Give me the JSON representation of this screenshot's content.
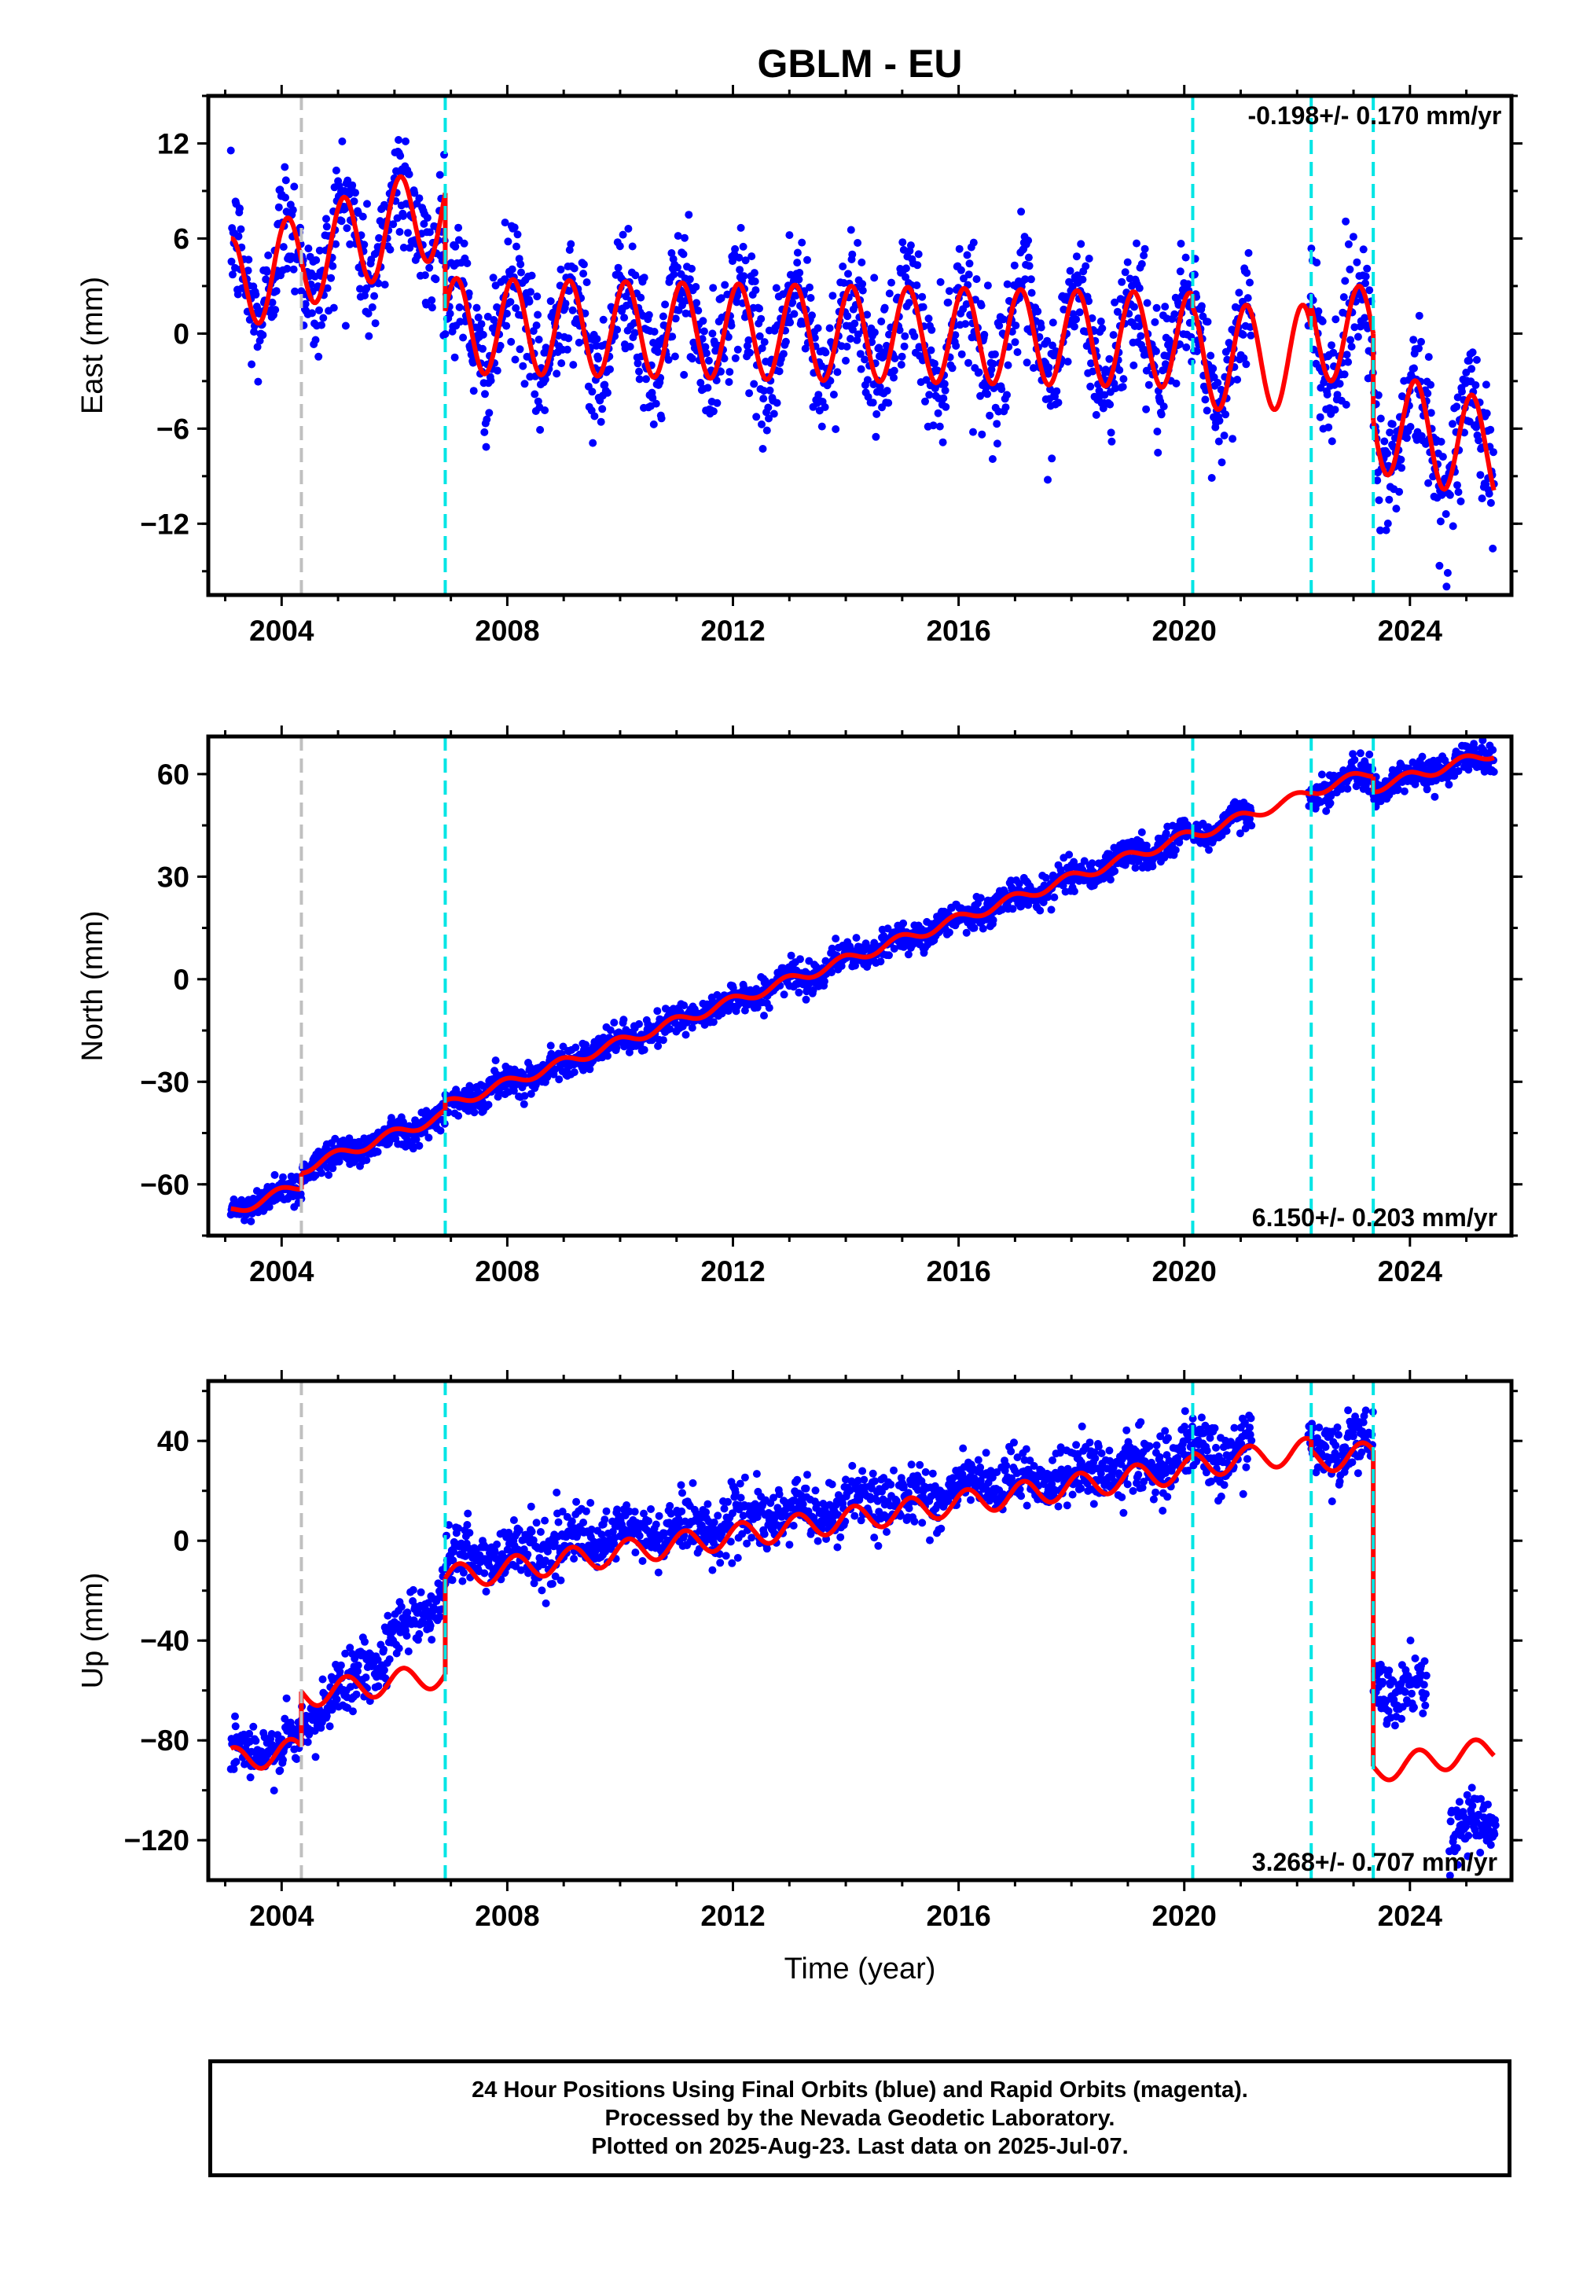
{
  "figure": {
    "title": "GBLM - EU"
  },
  "colors": {
    "data": "#0000ff",
    "model": "#ff0000",
    "offset_cyan": "#00e5e5",
    "offset_gray": "#c0c0c0"
  },
  "chart_data": [
    {
      "type": "scatter",
      "panel": "east",
      "title": "GBLM - EU",
      "ylabel": "East (mm)",
      "xlabel": "",
      "xlim": [
        2002.7,
        2025.8
      ],
      "ylim": [
        -16.5,
        15
      ],
      "xticks": [
        2004,
        2008,
        2012,
        2016,
        2020,
        2024
      ],
      "yticks": [
        -12,
        -6,
        0,
        6,
        12
      ],
      "rate": "-0.198+/- 0.170 mm/yr",
      "rate_position": "top-right",
      "offset_lines": [
        {
          "x": 2004.35,
          "color": "gray"
        },
        {
          "x": 2006.9,
          "color": "cyan"
        },
        {
          "x": 2020.15,
          "color": "cyan"
        },
        {
          "x": 2022.25,
          "color": "cyan"
        },
        {
          "x": 2023.35,
          "color": "cyan"
        }
      ],
      "model": {
        "segments": [
          {
            "start": 2003.1,
            "end": 2006.9,
            "v0": 3,
            "rate": 1.3,
            "amp": 3.0,
            "phase": 0.15
          },
          {
            "start": 2006.9,
            "end": 2020.15,
            "v0": 0.5,
            "rate": -0.07,
            "amp": 3.0,
            "phase": 0.15
          },
          {
            "start": 2020.15,
            "end": 2022.25,
            "v0": -1.5,
            "rate": 0.0,
            "amp": 3.3,
            "phase": 0.15
          },
          {
            "start": 2022.25,
            "end": 2023.35,
            "v0": 0.0,
            "rate": 0.0,
            "amp": 3.0,
            "phase": 0.15
          },
          {
            "start": 2023.35,
            "end": 2025.5,
            "v0": -5.5,
            "rate": -0.9,
            "amp": 3.2,
            "phase": 0.15
          }
        ]
      },
      "data_series": {
        "coverage": [
          [
            2003.1,
            2021.2
          ],
          [
            2022.2,
            2023.4
          ],
          [
            2023.4,
            2025.52
          ]
        ],
        "noise": 2.0
      }
    },
    {
      "type": "scatter",
      "panel": "north",
      "ylabel": "North (mm)",
      "xlabel": "",
      "xlim": [
        2002.7,
        2025.8
      ],
      "ylim": [
        -75,
        71
      ],
      "xticks": [
        2004,
        2008,
        2012,
        2016,
        2020,
        2024
      ],
      "yticks": [
        -60,
        -30,
        0,
        30,
        60
      ],
      "rate": "6.150+/- 0.203 mm/yr",
      "rate_position": "bottom-right",
      "offset_lines": [
        {
          "x": 2004.35,
          "color": "gray"
        },
        {
          "x": 2006.9,
          "color": "cyan"
        },
        {
          "x": 2020.15,
          "color": "cyan"
        },
        {
          "x": 2022.25,
          "color": "cyan"
        },
        {
          "x": 2023.35,
          "color": "cyan"
        }
      ],
      "model": {
        "segments": [
          {
            "start": 2003.1,
            "end": 2004.35,
            "v0": -68,
            "rate": 6.2,
            "amp": 1.5,
            "phase": 0.3
          },
          {
            "start": 2004.35,
            "end": 2006.9,
            "v0": -55.5,
            "rate": 6.2,
            "amp": 1.5,
            "phase": 0.3
          },
          {
            "start": 2006.9,
            "end": 2020.15,
            "v0": -37,
            "rate": 6.0,
            "amp": 1.5,
            "phase": 0.3
          },
          {
            "start": 2020.15,
            "end": 2022.25,
            "v0": 42,
            "rate": 6.0,
            "amp": 1.5,
            "phase": 0.3
          },
          {
            "start": 2022.25,
            "end": 2023.35,
            "v0": 55,
            "rate": 5.0,
            "amp": 1.5,
            "phase": 0.3
          },
          {
            "start": 2023.35,
            "end": 2025.5,
            "v0": 56,
            "rate": 4.8,
            "amp": 1.5,
            "phase": 0.3
          }
        ]
      },
      "data_series": {
        "coverage": [
          [
            2003.1,
            2021.2
          ],
          [
            2022.2,
            2023.4
          ],
          [
            2023.4,
            2025.52
          ]
        ],
        "noise": 2.2
      }
    },
    {
      "type": "scatter",
      "panel": "up",
      "ylabel": "Up (mm)",
      "xlabel": "Time (year)",
      "xlim": [
        2002.7,
        2025.8
      ],
      "ylim": [
        -136,
        64
      ],
      "xticks": [
        2004,
        2008,
        2012,
        2016,
        2020,
        2024
      ],
      "yticks": [
        -120,
        -80,
        -40,
        0,
        40
      ],
      "rate": "3.268+/- 0.707 mm/yr",
      "rate_position": "bottom-right",
      "offset_lines": [
        {
          "x": 2004.35,
          "color": "gray"
        },
        {
          "x": 2006.9,
          "color": "cyan"
        },
        {
          "x": 2020.15,
          "color": "cyan"
        },
        {
          "x": 2022.25,
          "color": "cyan"
        },
        {
          "x": 2023.35,
          "color": "cyan"
        }
      ],
      "model": {
        "segments": [
          {
            "start": 2003.1,
            "end": 2004.35,
            "v0": -88,
            "rate": 3.3,
            "amp": 5,
            "phase": 0.1
          },
          {
            "start": 2004.35,
            "end": 2006.9,
            "v0": -62,
            "rate": 3.3,
            "amp": 5,
            "phase": 0.1
          },
          {
            "start": 2006.9,
            "end": 2020.15,
            "v0": -15,
            "rate": 3.3,
            "amp": 5,
            "phase": 0.1
          },
          {
            "start": 2020.15,
            "end": 2022.25,
            "v0": 30,
            "rate": 3.0,
            "amp": 5,
            "phase": 0.1
          },
          {
            "start": 2022.25,
            "end": 2023.35,
            "v0": 32,
            "rate": 2.5,
            "amp": 5,
            "phase": 0.1
          },
          {
            "start": 2023.35,
            "end": 2025.5,
            "v0": -92,
            "rate": 4.0,
            "amp": 5,
            "phase": 0.1
          }
        ]
      },
      "data_series": {
        "coverage": [
          [
            2003.1,
            2021.2
          ],
          [
            2022.2,
            2023.4
          ],
          [
            2023.4,
            2024.3
          ],
          [
            2024.7,
            2025.52
          ]
        ],
        "noise": 6.0,
        "overrides": [
          {
            "start": 2003.1,
            "end": 2004.35,
            "base": -85,
            "rate": 2.0
          },
          {
            "start": 2004.35,
            "end": 2006.9,
            "base": -75,
            "rate": 22.0
          },
          {
            "start": 2006.9,
            "end": 2020.15,
            "base": -8,
            "rate": 3.1
          },
          {
            "start": 2020.15,
            "end": 2023.35,
            "base": 36,
            "rate": 0.5
          },
          {
            "start": 2023.35,
            "end": 2024.3,
            "base": -60,
            "rate": 0.0
          },
          {
            "start": 2024.7,
            "end": 2025.52,
            "base": -115,
            "rate": 0.0
          }
        ]
      }
    }
  ],
  "footer": {
    "line1": "24 Hour Positions Using Final Orbits (blue) and Rapid Orbits (magenta).",
    "line2": "Processed by the Nevada Geodetic Laboratory.",
    "line3": "Plotted on 2025-Aug-23. Last data on 2025-Jul-07."
  }
}
